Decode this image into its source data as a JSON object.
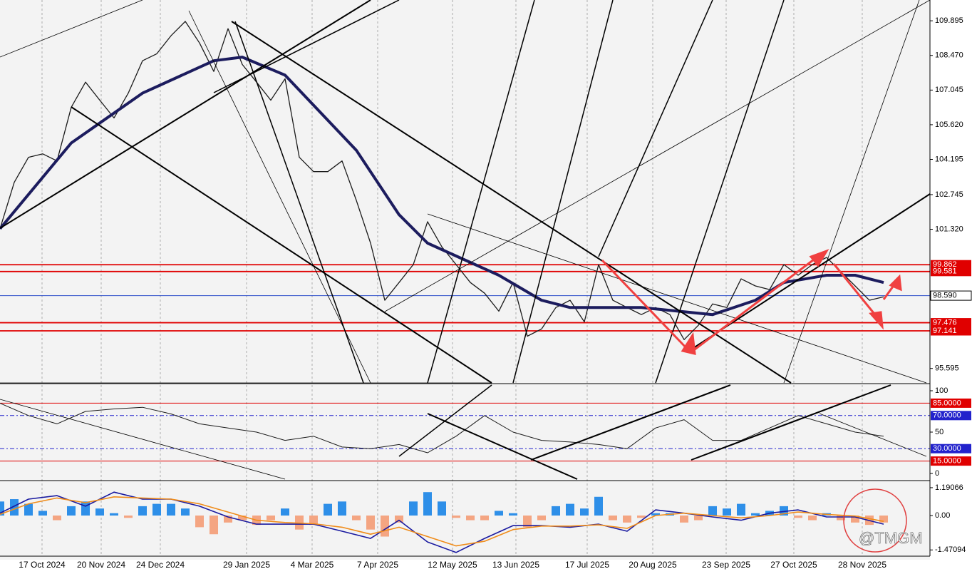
{
  "chart_data": [
    {
      "type": "line",
      "xlim": [
        0,
        65
      ],
      "ylim": [
        95.0,
        110.75
      ],
      "xticks": [
        {
          "value": 2.95,
          "label": "17 Oct 2024"
        },
        {
          "value": 7.1,
          "label": "20 Nov 2024"
        },
        {
          "value": 11.25,
          "label": "24 Dec 2024"
        },
        {
          "value": 17.3,
          "label": "29 Jan 2025"
        },
        {
          "value": 21.9,
          "label": "4 Mar 2025"
        },
        {
          "value": 26.5,
          "label": "7 Apr 2025"
        },
        {
          "value": 31.75,
          "label": "12 May 2025"
        },
        {
          "value": 36.2,
          "label": "13 Jun 2025"
        },
        {
          "value": 41.2,
          "label": "17 Jul 2025"
        },
        {
          "value": 45.8,
          "label": "20 Aug 2025"
        },
        {
          "value": 50.95,
          "label": "23 Sep 2025"
        },
        {
          "value": 55.7,
          "label": "27 Oct 2025"
        },
        {
          "value": 60.5,
          "label": "28 Nov 2025"
        }
      ],
      "yticks": [
        109.895,
        {
          "value": 108.47,
          "label": "108.470"
        },
        107.045,
        {
          "value": 105.62,
          "label": "105.620"
        },
        104.195,
        102.745,
        {
          "value": 101.32,
          "label": "101.320"
        },
        95.595
      ],
      "levels": [
        {
          "value": 99.862,
          "color": "#e00000"
        },
        {
          "value": 99.581,
          "color": "#e00000"
        },
        {
          "value": 98.59,
          "label": "98.590",
          "color": "#2b4cc8"
        },
        {
          "value": 97.476,
          "color": "#e00000"
        },
        {
          "value": 97.141,
          "color": "#e00000"
        }
      ],
      "series": [
        {
          "color": "#1b1b1b",
          "width": 1.3,
          "x": [
            0,
            1,
            2,
            3,
            4,
            5,
            6,
            7,
            8,
            9,
            10,
            11,
            12,
            13,
            14,
            15,
            16,
            17,
            18,
            19,
            20,
            21,
            22,
            23,
            24,
            25,
            26,
            27,
            28,
            29,
            30,
            31,
            32,
            33,
            34,
            35,
            36,
            37,
            38,
            39,
            40,
            41,
            42,
            43,
            44,
            45,
            46,
            47,
            48,
            49,
            50,
            51,
            52,
            53,
            54,
            55,
            56,
            57,
            58,
            59,
            60,
            61,
            62
          ],
          "values": [
            101.34,
            103.25,
            104.28,
            104.42,
            104.13,
            106.34,
            107.37,
            106.63,
            105.9,
            106.92,
            108.25,
            108.54,
            109.28,
            109.87,
            108.98,
            107.81,
            109.57,
            108.1,
            107.37,
            106.63,
            107.51,
            104.28,
            103.69,
            103.69,
            104.13,
            102.51,
            100.75,
            98.4,
            99.13,
            99.87,
            101.63,
            100.6,
            99.87,
            99.13,
            98.69,
            97.95,
            99.13,
            96.92,
            97.22,
            98.1,
            98.4,
            97.51,
            99.87,
            98.4,
            98.1,
            97.81,
            98.1,
            97.81,
            96.78,
            97.37,
            98.25,
            98.1,
            99.28,
            98.99,
            98.84,
            99.87,
            99.43,
            99.87,
            100.16,
            99.57,
            98.99,
            98.4,
            98.54
          ]
        },
        {
          "color": "#1c1c5e",
          "width": 4,
          "x": [
            0,
            5,
            10,
            15,
            17,
            20,
            25,
            28,
            30,
            35,
            38,
            40,
            45,
            50,
            53,
            55,
            58,
            60,
            62
          ],
          "values": [
            101.34,
            104.87,
            106.92,
            108.25,
            108.4,
            107.66,
            104.57,
            101.92,
            100.75,
            99.43,
            98.4,
            98.1,
            98.1,
            97.81,
            98.4,
            99.13,
            99.43,
            99.43,
            99.13
          ]
        }
      ]
    },
    {
      "type": "line",
      "xlim": [
        0,
        65
      ],
      "ylim": [
        -6.9,
        106.9
      ],
      "yticks": [
        100,
        50,
        0
      ],
      "levels": [
        {
          "value": 85,
          "label": "85.0000",
          "color": "#e00000"
        },
        {
          "value": 70,
          "label": "70.0000",
          "color": "#2222cc"
        },
        {
          "value": 30,
          "label": "30.0000",
          "color": "#2222cc"
        },
        {
          "value": 15,
          "label": "15.0000",
          "color": "#e00000"
        }
      ],
      "series": [
        {
          "color": "#1b1b1b",
          "width": 1,
          "x": [
            0,
            2,
            4,
            6,
            8,
            10,
            12,
            14,
            16,
            18,
            20,
            22,
            24,
            26,
            28,
            30,
            32,
            34,
            36,
            38,
            40,
            42,
            44,
            46,
            48,
            50,
            52,
            54,
            56,
            58,
            60,
            62
          ],
          "values": [
            85,
            70,
            60,
            75,
            78,
            80,
            72,
            60,
            55,
            50,
            40,
            45,
            32,
            30,
            35,
            25,
            45,
            70,
            50,
            40,
            38,
            35,
            30,
            55,
            65,
            40,
            40,
            55,
            70,
            60,
            50,
            45
          ]
        }
      ]
    },
    {
      "type": "bar",
      "xlim": [
        0,
        65
      ],
      "ylim": [
        -1.677,
        1.433
      ],
      "yticks": [
        1.19066,
        {
          "value": 0,
          "label": "0.00"
        },
        -1.47094
      ],
      "color_up": "#2e8fe8",
      "color_down": "#f4a582",
      "values": [
        0.6,
        0.7,
        0.5,
        0.2,
        -0.2,
        0.4,
        0.6,
        0.3,
        0.1,
        -0.1,
        0.4,
        0.5,
        0.5,
        0.3,
        -0.5,
        -0.8,
        -0.3,
        -0.2,
        -0.4,
        -0.2,
        0.3,
        -0.6,
        -0.4,
        0.5,
        0.6,
        -0.2,
        -0.6,
        -0.9,
        -0.3,
        0.6,
        1.0,
        0.6,
        -0.1,
        -0.2,
        -0.2,
        0.2,
        0.1,
        -0.5,
        -0.2,
        0.4,
        0.5,
        0.3,
        0.8,
        -0.2,
        -0.3,
        -0.1,
        0.1,
        0.1,
        -0.3,
        -0.2,
        0.4,
        0.3,
        0.5,
        0.1,
        0.2,
        0.4,
        -0.1,
        -0.2,
        0.1,
        -0.2,
        -0.3,
        -0.4,
        -0.3
      ],
      "series": [
        {
          "color": "#1a1aa0",
          "width": 1.6,
          "x": [
            0,
            2,
            4,
            6,
            8,
            10,
            12,
            14,
            16,
            18,
            20,
            22,
            24,
            26,
            28,
            30,
            32,
            34,
            36,
            38,
            40,
            42,
            44,
            46,
            48,
            50,
            52,
            54,
            56,
            58,
            60,
            62
          ],
          "values": [
            0.1,
            0.7,
            0.85,
            0.4,
            1.0,
            0.7,
            0.7,
            0.4,
            -0.06,
            -0.37,
            -0.37,
            -0.37,
            -0.67,
            -0.98,
            -0.2,
            -1.13,
            -1.58,
            -0.98,
            -0.43,
            -0.43,
            -0.5,
            -0.37,
            -0.67,
            0.24,
            0.1,
            -0.06,
            -0.2,
            0.1,
            0.24,
            -0.06,
            -0.06,
            -0.37
          ]
        },
        {
          "color": "#f08c1a",
          "width": 1.6,
          "x": [
            0,
            2,
            4,
            6,
            8,
            10,
            12,
            14,
            16,
            18,
            20,
            22,
            24,
            26,
            28,
            30,
            32,
            34,
            36,
            38,
            40,
            42,
            44,
            46,
            48,
            50,
            52,
            54,
            56,
            58,
            60,
            62
          ],
          "values": [
            0.05,
            0.5,
            0.75,
            0.55,
            0.8,
            0.75,
            0.7,
            0.5,
            0.15,
            -0.2,
            -0.3,
            -0.35,
            -0.5,
            -0.8,
            -0.5,
            -0.9,
            -1.3,
            -1.1,
            -0.6,
            -0.45,
            -0.45,
            -0.4,
            -0.55,
            0.0,
            0.1,
            0.0,
            -0.1,
            0.0,
            0.15,
            0.05,
            -0.02,
            -0.25
          ]
        }
      ]
    }
  ],
  "watermark": "@TMGM"
}
